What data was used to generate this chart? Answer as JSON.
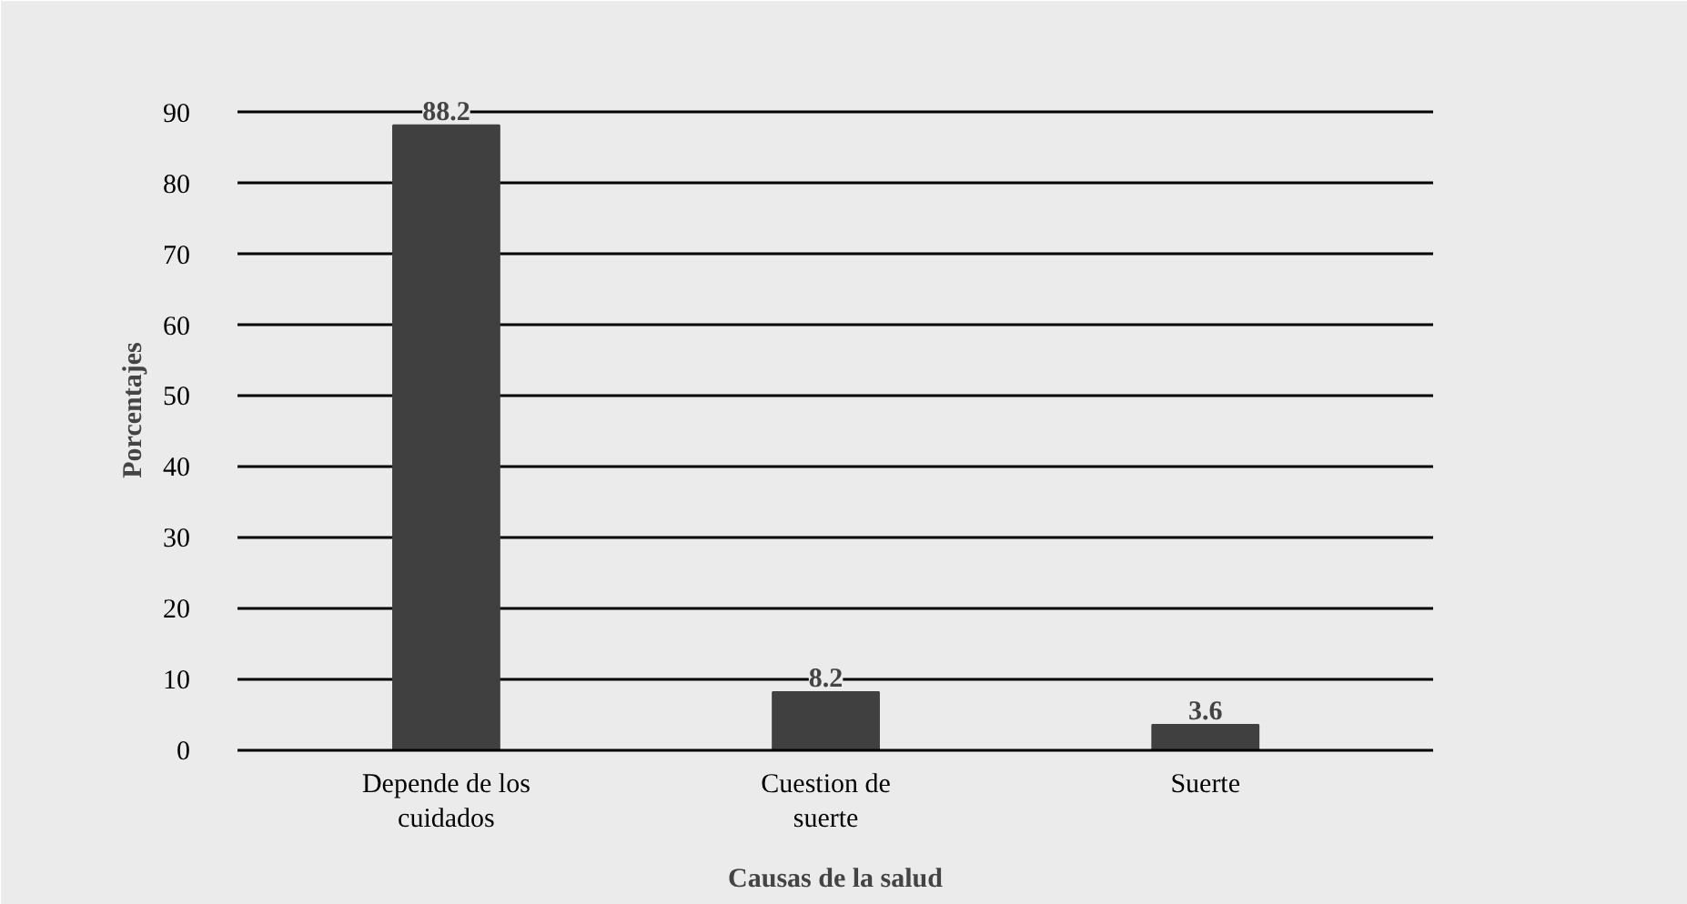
{
  "chart_data": {
    "type": "bar",
    "categories": [
      "Depende de los\ncuidados",
      "Cuestion de\nsuerte",
      "Suerte"
    ],
    "values": [
      88.2,
      8.2,
      3.6
    ],
    "color": "#404040",
    "xlabel": "Causas de la salud",
    "ylabel": "Porcentajes",
    "ylim": [
      0,
      96
    ],
    "yticks": [
      0,
      10,
      20,
      30,
      40,
      50,
      60,
      70,
      80,
      90
    ],
    "grid": "y",
    "data_labels": true
  }
}
